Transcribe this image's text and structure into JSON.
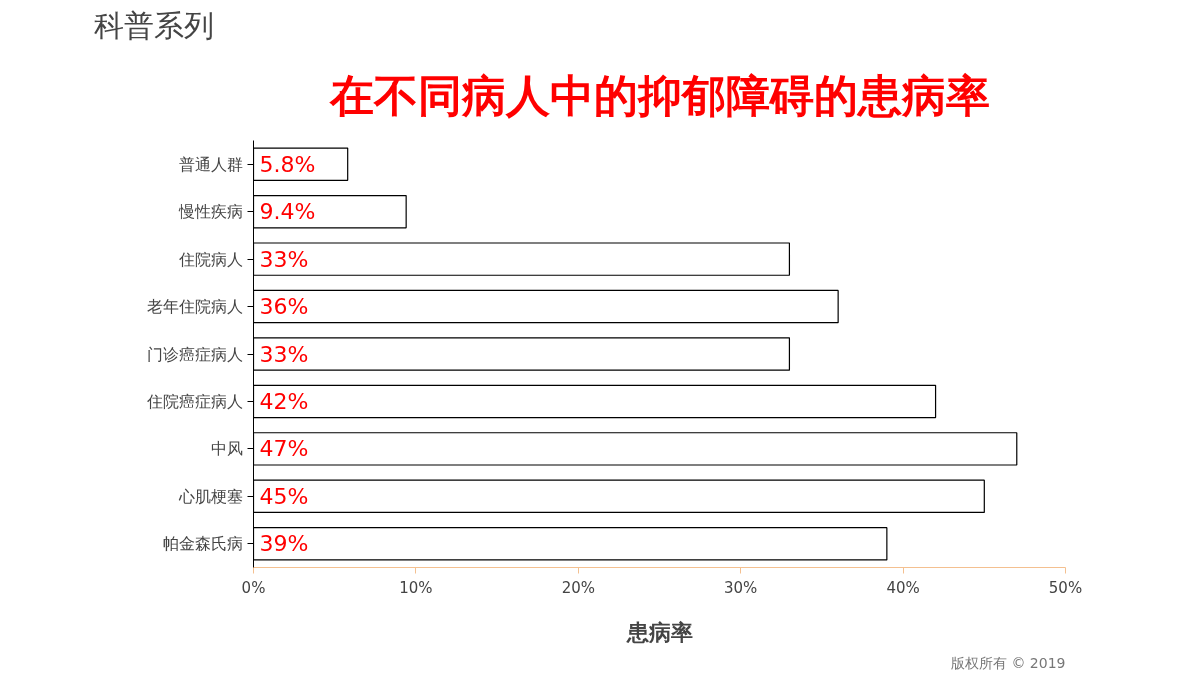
{
  "chart_data": {
    "type": "bar",
    "orientation": "horizontal",
    "title": "在不同病人中的抑郁障碍的患病率",
    "xlabel": "患病率",
    "categories": [
      "普通人群",
      "慢性疾病",
      "住院病人",
      "老年住院病人",
      "门诊癌症病人",
      "住院癌症病人",
      "中风",
      "心肌梗塞",
      "帕金森氏病"
    ],
    "values": [
      5.8,
      9.4,
      33,
      36,
      33,
      42,
      47,
      45,
      39
    ],
    "value_labels": [
      "5.8%",
      "9.4%",
      "33%",
      "36%",
      "33%",
      "42%",
      "47%",
      "45%",
      "39%"
    ],
    "color": "#ffffff",
    "xlim": [
      0,
      50
    ],
    "xticks": [
      {
        "value": 0,
        "label": "0%"
      },
      {
        "value": 10,
        "label": "10%"
      },
      {
        "value": 20,
        "label": "20%"
      },
      {
        "value": 30,
        "label": "30%"
      },
      {
        "value": 40,
        "label": "40%"
      },
      {
        "value": 50,
        "label": "50%"
      }
    ],
    "grid": false,
    "annotations": [
      "科普系列",
      "版权所有 © 2019"
    ]
  }
}
